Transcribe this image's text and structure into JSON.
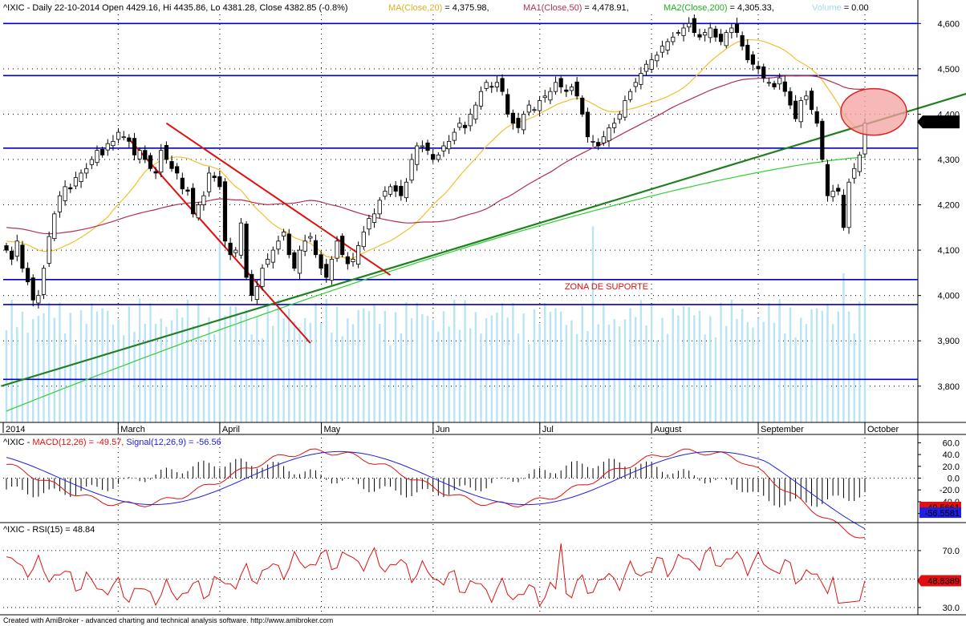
{
  "header": {
    "symbol": "^IXIC",
    "info": "^IXIC - Daily 22-10-2014 Open 4429.16, Hi 4435.86, Lo 4381.28, Close 4382.85 (-0.8%)",
    "ma_label": "MA(Close,20)",
    "ma_value": "= 4,375.98,",
    "ma1_label": "MA1(Close,50)",
    "ma1_value": "= 4,478.91,",
    "ma2_label": "MA2(Close,200)",
    "ma2_value": "= 4,305.33,",
    "vol_label": "Volume",
    "vol_value": "= 0.00"
  },
  "footer": "Created with AmiBroker - advanced charting and technical analysis software. http://www.amibroker.com",
  "annotation": "ZONA DE SUPORTE",
  "colors": {
    "ma20": "#f0c030",
    "ma50": "#b03050",
    "ma200": "#30d030",
    "trend_green": "#208020",
    "trend_red": "#e01010",
    "hline": "#0000c0",
    "volume": "#b8e4f4",
    "macd": "#e01010",
    "signal": "#2020e0",
    "circle_fill": "#f4a0a0",
    "circle_stroke": "#e02020"
  },
  "price_labels": [
    "4,382.85"
  ],
  "macd_labels": [
    "-49.5661",
    "-56.5581"
  ],
  "rsi_label": "48.8389",
  "macd_header": {
    "prefix": "^IXIC - ",
    "macd": "MACD(12,26) = -49.57,",
    "signal": "Signal(12,26,9) = -56.56"
  },
  "rsi_header": "^IXIC - RSI(15) = 48.84",
  "chart_data": [
    {
      "type": "candlestick",
      "title": "^IXIC - Daily",
      "x_labels": [
        "2014",
        "March",
        "April",
        "May",
        "Jun",
        "Jul",
        "August",
        "September",
        "October"
      ],
      "ylim": [
        3720,
        4620
      ],
      "y_ticks": [
        3800,
        3900,
        4000,
        4100,
        4200,
        4300,
        4400,
        4500,
        4600
      ],
      "y_tick_labels": [
        "3,800",
        "3,900",
        "4,000",
        "4,100",
        "4,200",
        "4,300",
        "4,400",
        "4,500",
        "4,600"
      ],
      "last_close": 4382.85,
      "closes": [
        4100,
        4080,
        4120,
        4060,
        4030,
        3990,
        4000,
        4060,
        4130,
        4180,
        4220,
        4240,
        4235,
        4260,
        4270,
        4280,
        4300,
        4320,
        4310,
        4335,
        4340,
        4360,
        4350,
        4340,
        4310,
        4320,
        4300,
        4280,
        4270,
        4320,
        4300,
        4280,
        4270,
        4235,
        4230,
        4180,
        4200,
        4220,
        4270,
        4260,
        4240,
        4120,
        4090,
        4100,
        4160,
        4040,
        4000,
        4020,
        4060,
        4080,
        4100,
        4120,
        4140,
        4090,
        4060,
        4100,
        4120,
        4130,
        4090,
        4060,
        4040,
        4080,
        4120,
        4090,
        4070,
        4080,
        4110,
        4140,
        4170,
        4180,
        4210,
        4230,
        4240,
        4230,
        4220,
        4250,
        4300,
        4330,
        4330,
        4320,
        4300,
        4310,
        4330,
        4340,
        4360,
        4380,
        4370,
        4400,
        4420,
        4450,
        4470,
        4460,
        4470,
        4450,
        4400,
        4380,
        4370,
        4400,
        4420,
        4410,
        4430,
        4440,
        4450,
        4470,
        4460,
        4450,
        4460,
        4440,
        4400,
        4350,
        4340,
        4330,
        4350,
        4370,
        4380,
        4400,
        4430,
        4450,
        4470,
        4490,
        4510,
        4520,
        4530,
        4550,
        4560,
        4570,
        4580,
        4590,
        4600,
        4580,
        4570,
        4580,
        4590,
        4570,
        4560,
        4580,
        4590,
        4580,
        4550,
        4520,
        4510,
        4500,
        4480,
        4470,
        4460,
        4480,
        4450,
        4420,
        4390,
        4430,
        4440,
        4410,
        4380,
        4300,
        4220,
        4230,
        4230,
        4150,
        4250,
        4280,
        4310,
        4380
      ],
      "horizontal_lines": [
        4600,
        4485,
        4325,
        4035,
        3980,
        3815
      ],
      "series": [
        {
          "name": "MA(Close,20)",
          "last": 4375.98
        },
        {
          "name": "MA1(Close,50)",
          "last": 4478.91
        },
        {
          "name": "MA2(Close,200)",
          "last": 4305.33
        },
        {
          "name": "Volume",
          "last": 0.0
        }
      ]
    },
    {
      "type": "line",
      "title": "^IXIC - MACD(12,26)",
      "ylim": [
        -70,
        70
      ],
      "y_ticks": [
        -60,
        -40,
        -20,
        0,
        20,
        40,
        60
      ],
      "y_tick_labels": [
        "-60.0",
        "-40.0",
        "-20.0",
        "0.0",
        "20.0",
        "40.0",
        "60.0"
      ],
      "series": [
        {
          "name": "MACD(12,26)",
          "last": -49.57
        },
        {
          "name": "Signal(12,26,9)",
          "last": -56.56
        }
      ]
    },
    {
      "type": "line",
      "title": "^IXIC - RSI(15)",
      "ylim": [
        26,
        88
      ],
      "y_ticks": [
        30,
        50,
        70
      ],
      "y_tick_labels": [
        "30.0",
        "50.0",
        "70.0"
      ],
      "series": [
        {
          "name": "RSI(15)",
          "last": 48.84
        }
      ]
    }
  ]
}
